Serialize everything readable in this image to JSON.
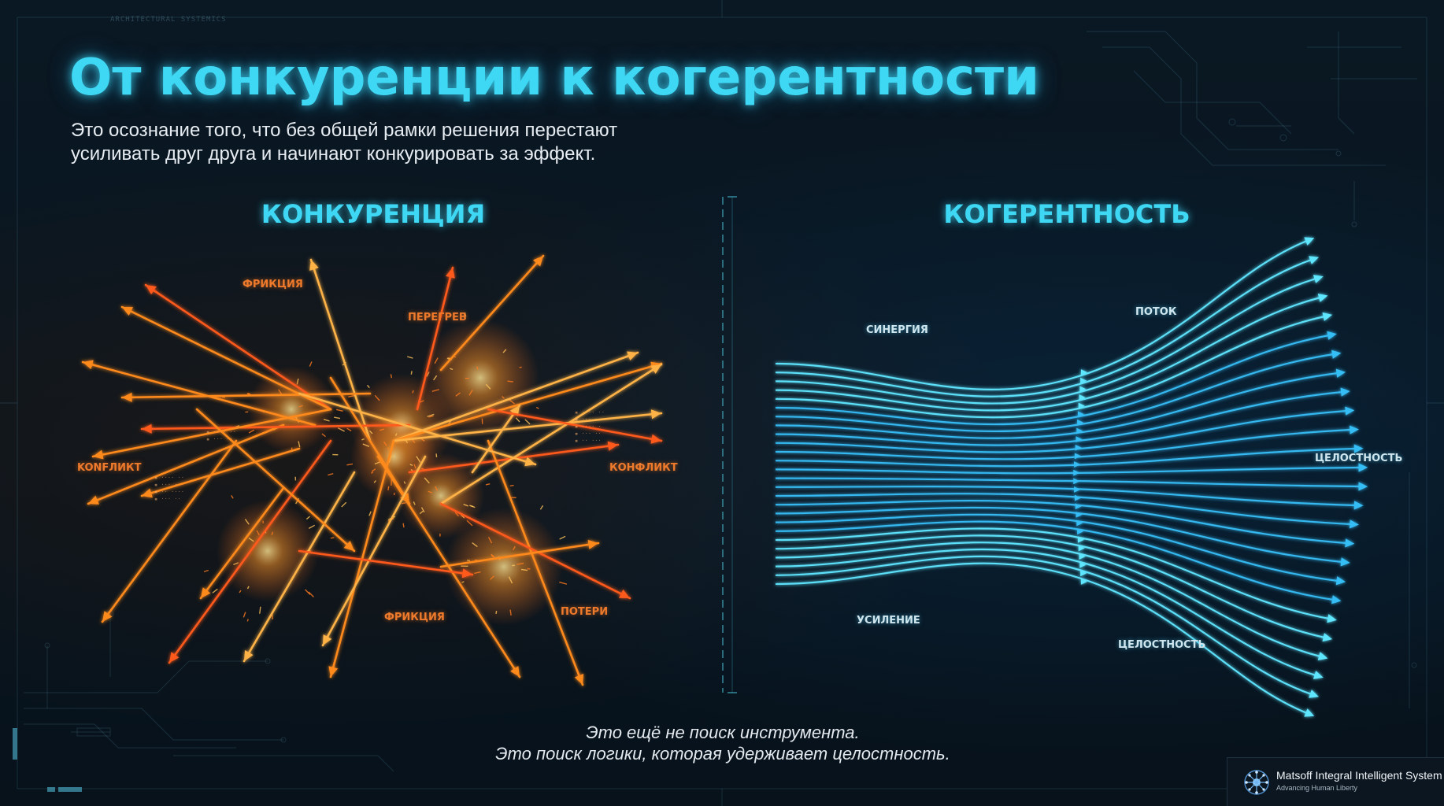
{
  "title": "От конкуренции к когерентности",
  "subtitle": {
    "line1": "Это осознание того, что без общей рамки решения перестают",
    "line2": "усиливать друг друга и начинают конкурировать за эффект."
  },
  "competition": {
    "heading": "КОНКУРЕНЦИЯ",
    "labels": {
      "friction_top": "ФРИКЦИЯ",
      "overheat": "ПЕРЕГРЕВ",
      "conflict_left": "KONFЛИКТ",
      "conflict_right": "КОНФЛИКТ",
      "friction_bottom": "ФРИКЦИЯ",
      "losses": "ПОТЕРИ"
    }
  },
  "coherence": {
    "heading": "КОГЕРЕНТНОСТЬ",
    "labels": {
      "synergy": "СИНЕРГИЯ",
      "flow": "ПОТОК",
      "integrity_right": "ЦЕЛОСТНОСТЬ",
      "amplification": "УСИЛЕНИЕ",
      "integrity_bottom": "ЦЕЛОСТНОСТЬ"
    }
  },
  "footer": {
    "line1": "Это ещё не поиск инструмента.",
    "line2": "Это поиск логики, которая удерживает целостность."
  },
  "brand": {
    "name": "Matsoff Integral Intelligent System",
    "tagline": "Advancing Human Liberty"
  },
  "colors": {
    "accent": "#3fd8f4",
    "competition": "#ff8a1e",
    "coherence": "#2fb7ff",
    "background": "#081520"
  },
  "icons": {
    "brand_logo": "neural-network-logo-icon",
    "competition_visual": "chaotic-arrows-icon",
    "coherence_visual": "aligned-flow-arrows-icon"
  }
}
